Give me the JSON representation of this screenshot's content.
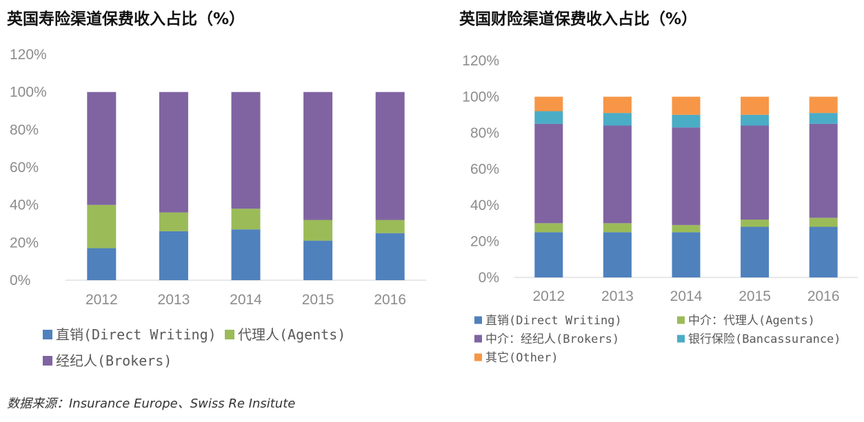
{
  "charts": {
    "left": {
      "title": "英国寿险渠道保费收入占比（%）"
    },
    "right": {
      "title": "英国财险渠道保费收入占比（%）"
    }
  },
  "source": "数据来源：Insurance Europe、Swiss Re Insitute",
  "chart_data": [
    {
      "type": "bar",
      "stacked": true,
      "title": "英国寿险渠道保费收入占比（%）",
      "xlabel": "",
      "ylabel": "",
      "categories": [
        "2012",
        "2013",
        "2014",
        "2015",
        "2016"
      ],
      "ylim": [
        0,
        120
      ],
      "yticks": [
        "0%",
        "20%",
        "40%",
        "60%",
        "80%",
        "100%",
        "120%"
      ],
      "grid": false,
      "legend": "bottom",
      "series": [
        {
          "name": "直销(Direct Writing)",
          "color": "#4f81bd",
          "values": [
            17,
            26,
            27,
            21,
            25
          ]
        },
        {
          "name": "代理人(Agents)",
          "color": "#9bbb59",
          "values": [
            23,
            10,
            11,
            11,
            7
          ]
        },
        {
          "name": "经纪人(Brokers)",
          "color": "#8064a2",
          "values": [
            60,
            64,
            62,
            68,
            68
          ]
        }
      ]
    },
    {
      "type": "bar",
      "stacked": true,
      "title": "英国财险渠道保费收入占比（%）",
      "xlabel": "",
      "ylabel": "",
      "categories": [
        "2012",
        "2013",
        "2014",
        "2015",
        "2016"
      ],
      "ylim": [
        0,
        120
      ],
      "yticks": [
        "0%",
        "20%",
        "40%",
        "60%",
        "80%",
        "100%",
        "120%"
      ],
      "grid": false,
      "legend": "bottom",
      "series": [
        {
          "name": "直销(Direct Writing)",
          "color": "#4f81bd",
          "values": [
            25,
            25,
            25,
            28,
            28
          ]
        },
        {
          "name": "中介：代理人(Agents)",
          "color": "#9bbb59",
          "values": [
            5,
            5,
            4,
            4,
            5
          ]
        },
        {
          "name": "中介：经纪人(Brokers)",
          "color": "#8064a2",
          "values": [
            55,
            54,
            54,
            52,
            52
          ]
        },
        {
          "name": "银行保险(Bancassurance)",
          "color": "#4bacc6",
          "values": [
            7,
            7,
            7,
            6,
            6
          ]
        },
        {
          "name": "其它(Other)",
          "color": "#f79646",
          "values": [
            8,
            9,
            10,
            10,
            9
          ]
        }
      ]
    }
  ]
}
